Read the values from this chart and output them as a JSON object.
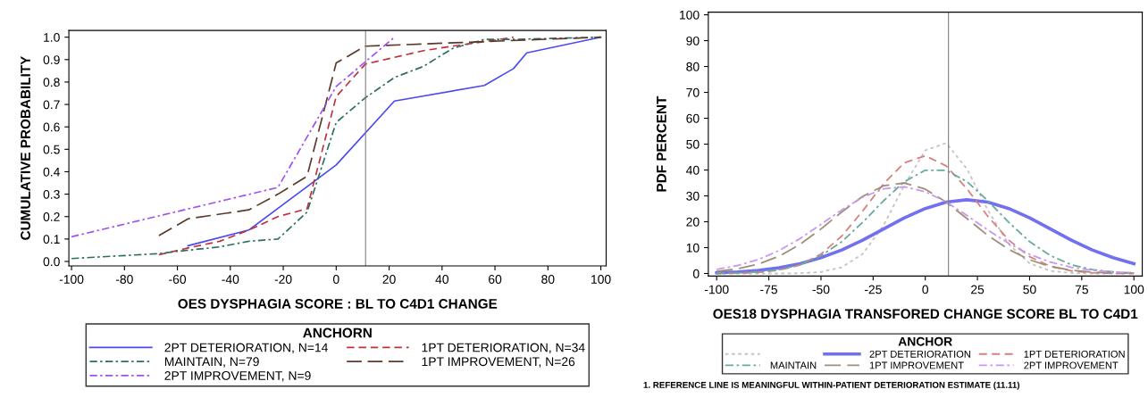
{
  "chart_data": [
    {
      "type": "line",
      "xlabel": "OES DYSPHAGIA SCORE : BL TO C4D1 CHANGE",
      "ylabel": "CUMULATIVE PROBABILITY",
      "legend_title": "ANCHORN",
      "legend": "bottom",
      "grid": false,
      "marker": "none",
      "xlim": [
        -101,
        102
      ],
      "xticks": [
        -100,
        -80,
        -60,
        -40,
        -20,
        0,
        20,
        40,
        60,
        80,
        100
      ],
      "ylim": [
        -0.02,
        1.03
      ],
      "yticks": [
        {
          "value": 0,
          "label": "0.0"
        },
        0.1,
        0.2,
        0.3,
        0.4,
        0.5,
        0.6,
        0.7,
        0.8,
        0.9,
        {
          "value": 1,
          "label": "1.0"
        }
      ],
      "ref_lines": [
        {
          "axis": "x",
          "value": 11.11,
          "color": "#808080",
          "line_style": "solid"
        }
      ],
      "series": [
        {
          "name": "2PT DETERIORATION, N=14",
          "color": "#4b4bf0",
          "line_style": "solid",
          "x": [
            -56,
            -33,
            0,
            22,
            56,
            67,
            72,
            100
          ],
          "values": [
            0.07,
            0.14,
            0.43,
            0.715,
            0.785,
            0.86,
            0.93,
            1.0
          ]
        },
        {
          "name": "1PT DETERIORATION, N=34",
          "color": "#c0303a",
          "line_style": "dashed",
          "x": [
            -67,
            -56,
            -44,
            -33,
            -22,
            -11,
            0,
            11,
            22,
            33,
            44,
            56,
            67
          ],
          "values": [
            0.03,
            0.06,
            0.09,
            0.14,
            0.2,
            0.235,
            0.735,
            0.88,
            0.91,
            0.94,
            0.96,
            0.98,
            1.0
          ]
        },
        {
          "name": "MAINTAIN, N=79",
          "color": "#2e6e5e",
          "line_style": "dashdot",
          "x": [
            -100,
            -67,
            -56,
            -44,
            -33,
            -22,
            -11,
            0,
            11,
            22,
            33,
            44,
            56,
            67,
            100
          ],
          "values": [
            0.013,
            0.035,
            0.05,
            0.065,
            0.09,
            0.1,
            0.22,
            0.62,
            0.73,
            0.82,
            0.87,
            0.95,
            0.99,
            0.99,
            1.0
          ]
        },
        {
          "name": "1PT IMPROVEMENT, N=26",
          "color": "#5a3a2a",
          "line_style": "longdash",
          "x": [
            -67,
            -56,
            -33,
            -22,
            -11,
            0,
            11,
            100
          ],
          "values": [
            0.115,
            0.19,
            0.23,
            0.3,
            0.38,
            0.885,
            0.96,
            1.0
          ]
        },
        {
          "name": "2PT IMPROVEMENT, N=9",
          "color": "#a050f0",
          "line_style": "dashdot",
          "x": [
            -100,
            -22,
            0,
            11,
            22
          ],
          "values": [
            0.11,
            0.33,
            0.78,
            0.89,
            1.0
          ]
        }
      ]
    },
    {
      "type": "line",
      "xlabel": "OES18 DYSPHAGIA TRANSFORED CHANGE SCORE BL TO C4D1",
      "ylabel": "PDF PERCENT",
      "legend_title": "ANCHOR",
      "legend": "bottom",
      "grid": false,
      "marker": "none",
      "xlim": [
        -104,
        104
      ],
      "xticks": [
        -100,
        -75,
        -50,
        -25,
        0,
        25,
        50,
        75,
        100
      ],
      "ylim": [
        -1,
        101
      ],
      "yticks": [
        0,
        10,
        20,
        30,
        40,
        50,
        60,
        70,
        80,
        90,
        100
      ],
      "ref_lines": [
        {
          "axis": "x",
          "value": 11.11,
          "color": "#808080",
          "line_style": "solid"
        }
      ],
      "annotations": [
        "1. REFERENCE LINE IS MEANINGFUL WITHIN-PATIENT DETERIORATION ESTIMATE (11.11)"
      ],
      "x": [
        -100,
        -90,
        -80,
        -70,
        -60,
        -50,
        -40,
        -30,
        -20,
        -10,
        0,
        10,
        20,
        30,
        40,
        50,
        60,
        70,
        80,
        90,
        100
      ],
      "series": [
        {
          "color": "#c4c4c4",
          "line_style": "dotted",
          "values": [
            0,
            0,
            0,
            0,
            0.1,
            0.6,
            2.4,
            7.6,
            18.6,
            34.2,
            47.6,
            50.4,
            40.4,
            24.5,
            11.3,
            3.9,
            1.0,
            0.2,
            0,
            0,
            0
          ]
        },
        {
          "name": "2PT DETERIORATION",
          "color": "#7070f0",
          "line_style": "solid",
          "values": [
            0.3,
            0.6,
            1.2,
            2.2,
            3.8,
            6.1,
            9.1,
            12.9,
            17.2,
            21.5,
            25.1,
            27.6,
            28.5,
            27.6,
            25.1,
            21.5,
            17.2,
            12.9,
            9.1,
            6.1,
            3.8
          ]
        },
        {
          "name": "1PT DETERIORATION",
          "color": "#d88080",
          "line_style": "dashed",
          "values": [
            0,
            0.1,
            0.4,
            1.3,
            3.3,
            7.5,
            14.5,
            24.2,
            34.7,
            42.8,
            45.5,
            41.6,
            32.7,
            22.1,
            12.9,
            6.5,
            2.8,
            1.0,
            0.3,
            0.1,
            0
          ]
        },
        {
          "name": "MAINTAIN",
          "color": "#6aaa9a",
          "line_style": "dashdot",
          "values": [
            0.1,
            0.2,
            0.6,
            1.5,
            3.4,
            6.9,
            12.3,
            19.8,
            28.1,
            35.5,
            39.9,
            39.9,
            35.5,
            28.1,
            19.8,
            12.3,
            6.9,
            3.4,
            1.5,
            0.6,
            0.2
          ]
        },
        {
          "name": "1PT IMPROVEMENT",
          "color": "#a08e78",
          "line_style": "longdash",
          "values": [
            0.8,
            1.8,
            3.6,
            6.7,
            11.3,
            17.2,
            23.8,
            29.8,
            33.9,
            35.0,
            32.6,
            27.6,
            21.2,
            14.7,
            9.3,
            5.3,
            2.7,
            1.3,
            0.5,
            0.2,
            0.1
          ]
        },
        {
          "name": "2PT IMPROVEMENT",
          "color": "#c898f0",
          "line_style": "dashdot",
          "values": [
            1.6,
            3.1,
            5.4,
            8.9,
            13.5,
            19.0,
            24.6,
            29.5,
            32.7,
            33.5,
            31.6,
            27.7,
            22.4,
            16.8,
            11.6,
            7.4,
            4.4,
            2.4,
            1.2,
            0.6,
            0.2
          ]
        }
      ]
    }
  ]
}
